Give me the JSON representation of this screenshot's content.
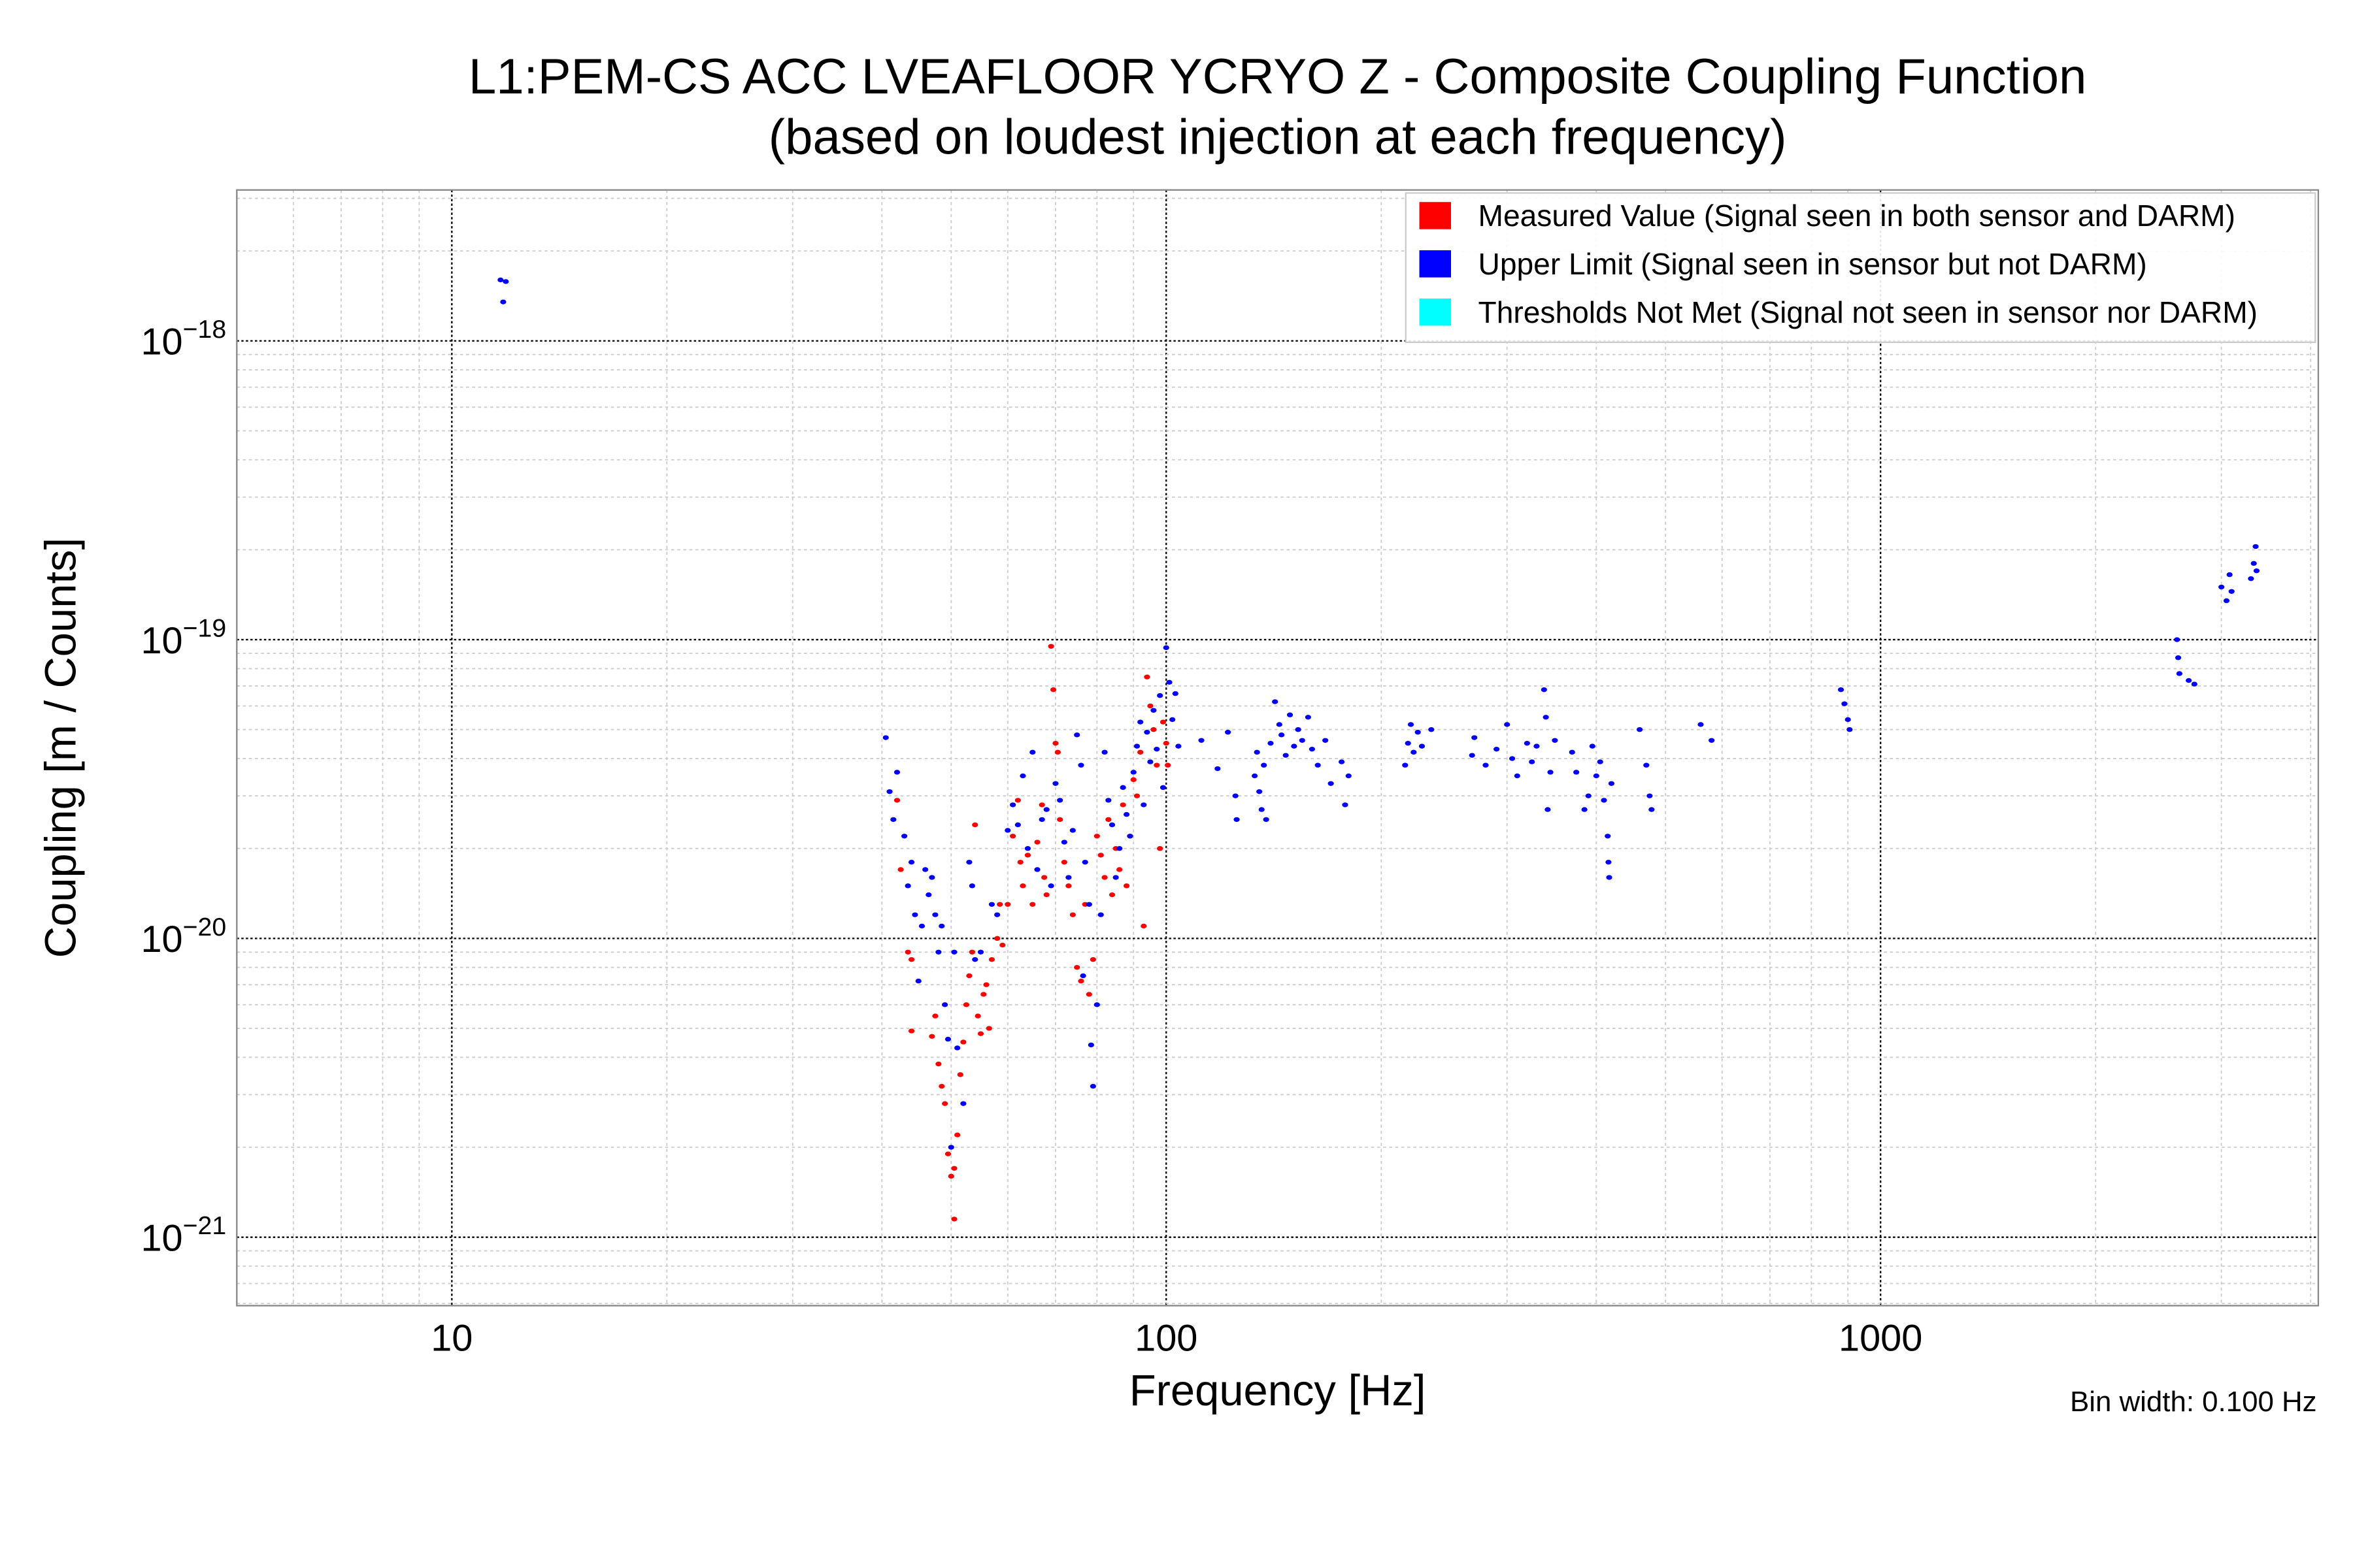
{
  "chart_data": {
    "type": "scatter",
    "title": "L1:PEM-CS ACC LVEAFLOOR YCRYO Z - Composite Coupling Function",
    "subtitle": "(based on loudest injection at each frequency)",
    "xlabel": "Frequency [Hz]",
    "ylabel": "Coupling [m / Counts]",
    "xscale": "log",
    "yscale": "log",
    "xlim": [
      5,
      4100
    ],
    "ylim": [
      5.9e-22,
      3.2e-18
    ],
    "grid": true,
    "legend_position": "top-right",
    "xticks": [
      10,
      100,
      1000
    ],
    "xtick_labels": [
      "10",
      "100",
      "1000"
    ],
    "yticks": [
      1e-18,
      1e-19,
      1e-20,
      1e-21
    ],
    "ytick_labels": [
      {
        "base": "10",
        "exp": "−18"
      },
      {
        "base": "10",
        "exp": "−19"
      },
      {
        "base": "10",
        "exp": "−20"
      },
      {
        "base": "10",
        "exp": "−21"
      }
    ],
    "note": "Bin width: 0.100 Hz",
    "series": [
      {
        "name": "Measured Value (Signal seen in both sensor and DARM)",
        "color": "#ff0000",
        "points": [
          [
            42,
            2.9e-20
          ],
          [
            42.5,
            1.7e-20
          ],
          [
            43.5,
            9e-21
          ],
          [
            44,
            8.5e-21
          ],
          [
            44,
            4.9e-21
          ],
          [
            47,
            4.7e-21
          ],
          [
            47.5,
            5.5e-21
          ],
          [
            48,
            3.8e-21
          ],
          [
            48.5,
            3.2e-21
          ],
          [
            49,
            2.8e-21
          ],
          [
            49.5,
            1.9e-21
          ],
          [
            50,
            1.6e-21
          ],
          [
            50.5,
            1.7e-21
          ],
          [
            50.5,
            1.15e-21
          ],
          [
            51,
            2.2e-21
          ],
          [
            51.5,
            3.5e-21
          ],
          [
            52,
            4.5e-21
          ],
          [
            52.5,
            6e-21
          ],
          [
            53,
            7.5e-21
          ],
          [
            53.5,
            9e-21
          ],
          [
            54,
            2.4e-20
          ],
          [
            54.5,
            5.5e-21
          ],
          [
            55,
            4.8e-21
          ],
          [
            55.5,
            6.5e-21
          ],
          [
            56,
            7e-21
          ],
          [
            56.5,
            5e-21
          ],
          [
            57,
            8.5e-21
          ],
          [
            58,
            1e-20
          ],
          [
            58.5,
            1.3e-20
          ],
          [
            59,
            9.5e-21
          ],
          [
            60,
            1.3e-20
          ],
          [
            61,
            2.2e-20
          ],
          [
            62,
            2.9e-20
          ],
          [
            62.5,
            1.8e-20
          ],
          [
            63,
            1.5e-20
          ],
          [
            64,
            1.9e-20
          ],
          [
            65,
            1.3e-20
          ],
          [
            66,
            2.1e-20
          ],
          [
            67,
            2.8e-20
          ],
          [
            67.5,
            1.6e-20
          ],
          [
            68,
            1.4e-20
          ],
          [
            69,
            9.5e-20
          ],
          [
            69.5,
            6.8e-20
          ],
          [
            70,
            4.5e-20
          ],
          [
            70.5,
            4.2e-20
          ],
          [
            71,
            2.5e-20
          ],
          [
            72,
            1.8e-20
          ],
          [
            73,
            1.5e-20
          ],
          [
            74,
            1.2e-20
          ],
          [
            75,
            8e-21
          ],
          [
            76,
            7.2e-21
          ],
          [
            77,
            1.3e-20
          ],
          [
            78,
            6.5e-21
          ],
          [
            79,
            8.5e-21
          ],
          [
            80,
            2.2e-20
          ],
          [
            81,
            1.9e-20
          ],
          [
            82,
            1.6e-20
          ],
          [
            83,
            2.5e-20
          ],
          [
            84,
            1.4e-20
          ],
          [
            85,
            2e-20
          ],
          [
            86,
            1.7e-20
          ],
          [
            87,
            2.8e-20
          ],
          [
            88,
            1.5e-20
          ],
          [
            89,
            2.2e-20
          ],
          [
            90,
            3.4e-20
          ],
          [
            91,
            3e-20
          ],
          [
            92,
            4.2e-20
          ],
          [
            93,
            1.1e-20
          ],
          [
            94,
            7.5e-20
          ],
          [
            95,
            6e-20
          ],
          [
            96,
            5e-20
          ],
          [
            97,
            3.8e-20
          ],
          [
            98,
            2e-20
          ],
          [
            99,
            5.3e-20
          ],
          [
            100,
            4.5e-20
          ],
          [
            100.5,
            3.8e-20
          ]
        ]
      },
      {
        "name": "Upper Limit (Signal seen in sensor but not DARM)",
        "color": "#0000ff",
        "points": [
          [
            11.7,
            1.6e-18
          ],
          [
            11.9,
            1.58e-18
          ],
          [
            11.8,
            1.35e-18
          ],
          [
            40.5,
            4.7e-20
          ],
          [
            41,
            3.1e-20
          ],
          [
            41.5,
            2.5e-20
          ],
          [
            42,
            3.6e-20
          ],
          [
            43,
            2.2e-20
          ],
          [
            43.5,
            1.5e-20
          ],
          [
            44,
            1.8e-20
          ],
          [
            44.5,
            1.2e-20
          ],
          [
            45,
            7.2e-21
          ],
          [
            45.5,
            1.1e-20
          ],
          [
            46,
            1.7e-20
          ],
          [
            46.5,
            1.4e-20
          ],
          [
            47,
            1.6e-20
          ],
          [
            47.5,
            1.2e-20
          ],
          [
            48,
            9e-21
          ],
          [
            48.5,
            1.1e-20
          ],
          [
            49,
            6e-21
          ],
          [
            49.5,
            4.6e-21
          ],
          [
            50,
            2e-21
          ],
          [
            50.5,
            9e-21
          ],
          [
            51,
            4.3e-21
          ],
          [
            52,
            2.8e-21
          ],
          [
            53,
            1.8e-20
          ],
          [
            53.5,
            1.5e-20
          ],
          [
            54,
            8.5e-21
          ],
          [
            55,
            9e-21
          ],
          [
            57,
            1.3e-20
          ],
          [
            58,
            1.2e-20
          ],
          [
            60,
            2.3e-20
          ],
          [
            61,
            2.8e-20
          ],
          [
            62,
            2.4e-20
          ],
          [
            63,
            3.5e-20
          ],
          [
            64,
            2e-20
          ],
          [
            65,
            4.2e-20
          ],
          [
            66,
            1.7e-20
          ],
          [
            67,
            2.5e-20
          ],
          [
            68,
            2.7e-20
          ],
          [
            69,
            1.5e-20
          ],
          [
            70,
            3.3e-20
          ],
          [
            71,
            2.9e-20
          ],
          [
            72,
            2.1e-20
          ],
          [
            73,
            1.6e-20
          ],
          [
            74,
            2.3e-20
          ],
          [
            75,
            4.8e-20
          ],
          [
            76,
            3.8e-20
          ],
          [
            76.5,
            7.5e-21
          ],
          [
            77,
            1.8e-20
          ],
          [
            78,
            1.3e-20
          ],
          [
            78.5,
            4.4e-21
          ],
          [
            79,
            3.2e-21
          ],
          [
            80,
            6e-21
          ],
          [
            81,
            1.2e-20
          ],
          [
            82,
            4.2e-20
          ],
          [
            83,
            2.9e-20
          ],
          [
            84,
            2.4e-20
          ],
          [
            85,
            1.6e-20
          ],
          [
            86,
            2e-20
          ],
          [
            87,
            3.2e-20
          ],
          [
            88,
            2.6e-20
          ],
          [
            89,
            2.2e-20
          ],
          [
            90,
            3.6e-20
          ],
          [
            91,
            4.4e-20
          ],
          [
            92,
            5.3e-20
          ],
          [
            93,
            2.8e-20
          ],
          [
            94,
            4.9e-20
          ],
          [
            95,
            3.9e-20
          ],
          [
            96,
            5.8e-20
          ],
          [
            97,
            4.3e-20
          ],
          [
            98,
            6.5e-20
          ],
          [
            99,
            3.2e-20
          ],
          [
            100,
            9.4e-20
          ],
          [
            101,
            7.2e-20
          ],
          [
            102,
            5.4e-20
          ],
          [
            103,
            6.6e-20
          ],
          [
            104,
            4.4e-20
          ],
          [
            112,
            4.6e-20
          ],
          [
            118,
            3.7e-20
          ],
          [
            122,
            4.9e-20
          ],
          [
            125,
            3e-20
          ],
          [
            125.5,
            2.5e-20
          ],
          [
            133,
            3.5e-20
          ],
          [
            134,
            4.2e-20
          ],
          [
            135,
            3.1e-20
          ],
          [
            136,
            2.7e-20
          ],
          [
            137,
            3.8e-20
          ],
          [
            138,
            2.5e-20
          ],
          [
            140,
            4.5e-20
          ],
          [
            142,
            6.2e-20
          ],
          [
            144,
            5.2e-20
          ],
          [
            145,
            4.8e-20
          ],
          [
            147,
            4.1e-20
          ],
          [
            149,
            5.6e-20
          ],
          [
            151,
            4.4e-20
          ],
          [
            153,
            5e-20
          ],
          [
            155,
            4.6e-20
          ],
          [
            158,
            5.5e-20
          ],
          [
            160,
            4.3e-20
          ],
          [
            163,
            3.8e-20
          ],
          [
            167,
            4.6e-20
          ],
          [
            170,
            3.3e-20
          ],
          [
            176,
            3.9e-20
          ],
          [
            178,
            2.8e-20
          ],
          [
            180,
            3.5e-20
          ],
          [
            216,
            3.8e-20
          ],
          [
            218,
            4.5e-20
          ],
          [
            220,
            5.2e-20
          ],
          [
            222,
            4.2e-20
          ],
          [
            225,
            4.9e-20
          ],
          [
            228,
            4.4e-20
          ],
          [
            235,
            5e-20
          ],
          [
            268,
            4.1e-20
          ],
          [
            270,
            4.7e-20
          ],
          [
            280,
            3.8e-20
          ],
          [
            290,
            4.3e-20
          ],
          [
            300,
            5.2e-20
          ],
          [
            305,
            4e-20
          ],
          [
            310,
            3.5e-20
          ],
          [
            320,
            4.5e-20
          ],
          [
            325,
            3.9e-20
          ],
          [
            330,
            4.4e-20
          ],
          [
            338,
            6.8e-20
          ],
          [
            340,
            5.5e-20
          ],
          [
            342,
            2.7e-20
          ],
          [
            345,
            3.6e-20
          ],
          [
            350,
            4.6e-20
          ],
          [
            370,
            4.2e-20
          ],
          [
            375,
            3.6e-20
          ],
          [
            385,
            2.7e-20
          ],
          [
            390,
            3e-20
          ],
          [
            395,
            4.4e-20
          ],
          [
            400,
            3.5e-20
          ],
          [
            405,
            3.9e-20
          ],
          [
            410,
            2.9e-20
          ],
          [
            415,
            2.2e-20
          ],
          [
            416,
            1.8e-20
          ],
          [
            417,
            1.6e-20
          ],
          [
            420,
            3.3e-20
          ],
          [
            460,
            5e-20
          ],
          [
            470,
            3.8e-20
          ],
          [
            475,
            3e-20
          ],
          [
            478,
            2.7e-20
          ],
          [
            560,
            5.2e-20
          ],
          [
            580,
            4.6e-20
          ],
          [
            880,
            6.8e-20
          ],
          [
            890,
            6.1e-20
          ],
          [
            900,
            5.4e-20
          ],
          [
            905,
            5e-20
          ],
          [
            2600,
            1e-19
          ],
          [
            2610,
            8.7e-20
          ],
          [
            2620,
            7.7e-20
          ],
          [
            2700,
            7.3e-20
          ],
          [
            2750,
            7.1e-20
          ],
          [
            3000,
            1.5e-19
          ],
          [
            3050,
            1.35e-19
          ],
          [
            3080,
            1.65e-19
          ],
          [
            3100,
            1.45e-19
          ],
          [
            3300,
            1.6e-19
          ],
          [
            3330,
            1.8e-19
          ],
          [
            3350,
            2.05e-19
          ],
          [
            3360,
            1.7e-19
          ]
        ]
      },
      {
        "name": "Thresholds Not Met (Signal not seen in sensor nor DARM)",
        "color": "#00ffff",
        "points": []
      }
    ]
  }
}
